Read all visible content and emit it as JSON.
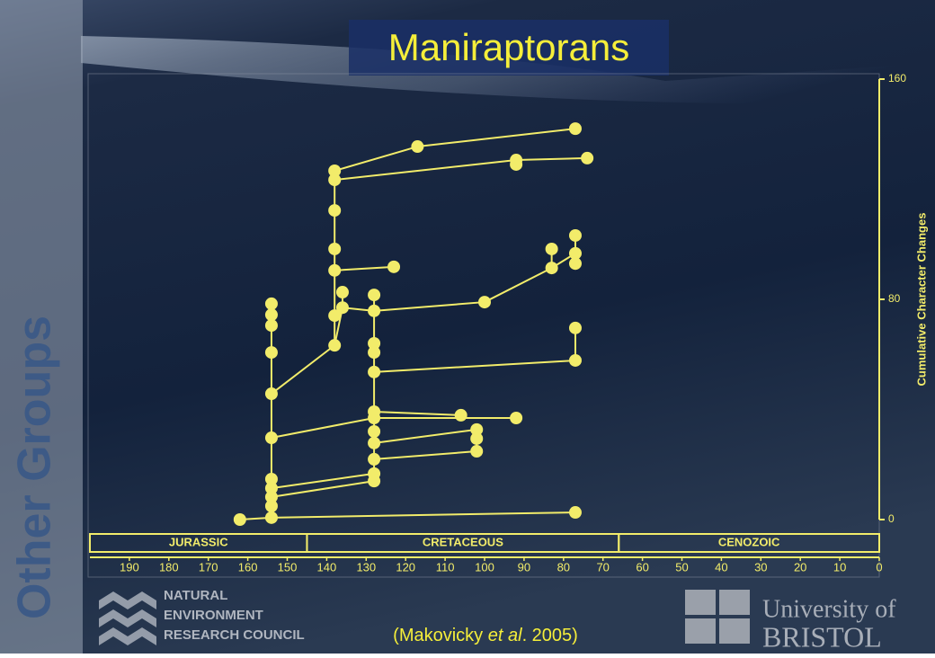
{
  "side_label": "Other Groups",
  "citation": {
    "before": "(Makovicky ",
    "italic": "et al",
    "after": ". 2005)"
  },
  "logos": {
    "nerc": [
      "NATURAL",
      "ENVIRONMENT",
      "RESEARCH COUNCIL"
    ],
    "bristol": [
      "University of",
      "BRISTOL"
    ]
  },
  "chart_data": {
    "type": "tree",
    "title": "Maniraptorans",
    "color": "#f2ec6a",
    "y_label": "Cumulative Character Changes",
    "x": [
      162,
      154,
      154,
      154,
      154,
      154,
      154,
      154,
      154,
      154,
      154,
      154,
      138,
      138,
      138,
      138,
      138,
      138,
      138,
      136,
      136,
      128,
      128,
      128,
      128,
      128,
      128,
      128,
      128,
      128,
      128,
      128,
      128,
      117,
      92,
      92,
      74,
      77,
      123,
      100,
      83,
      83,
      77,
      77,
      77,
      77,
      77,
      106,
      92,
      102,
      102,
      102,
      77
    ],
    "values": [
      0,
      0.7,
      4.9,
      8.2,
      11.4,
      14.7,
      29.7,
      45.7,
      60.7,
      70.5,
      74.4,
      78.4,
      63.3,
      74.1,
      90.5,
      98.3,
      112.3,
      123.4,
      126.7,
      77,
      82.6,
      14,
      16.7,
      21.9,
      27.8,
      32,
      36.9,
      39.2,
      53.6,
      60.7,
      64,
      75.8,
      81.6,
      135.5,
      130.6,
      129,
      131.3,
      142,
      91.8,
      79,
      98.3,
      91.4,
      103.2,
      96.7,
      93,
      69.6,
      57.8,
      37.9,
      36.9,
      32.7,
      29.4,
      24.8,
      2.6
    ],
    "edges": [
      [
        0,
        1
      ],
      [
        1,
        2
      ],
      [
        2,
        3
      ],
      [
        3,
        4
      ],
      [
        4,
        5
      ],
      [
        5,
        6
      ],
      [
        6,
        7
      ],
      [
        7,
        8
      ],
      [
        8,
        9
      ],
      [
        9,
        10
      ],
      [
        10,
        11
      ],
      [
        1,
        52
      ],
      [
        7,
        12
      ],
      [
        6,
        26
      ],
      [
        4,
        22
      ],
      [
        3,
        21
      ],
      [
        12,
        13
      ],
      [
        13,
        14
      ],
      [
        14,
        15
      ],
      [
        15,
        16
      ],
      [
        16,
        17
      ],
      [
        17,
        18
      ],
      [
        18,
        33
      ],
      [
        33,
        37
      ],
      [
        17,
        34
      ],
      [
        34,
        36
      ],
      [
        34,
        35
      ],
      [
        14,
        38
      ],
      [
        12,
        19
      ],
      [
        19,
        20
      ],
      [
        19,
        31
      ],
      [
        31,
        39
      ],
      [
        39,
        41
      ],
      [
        40,
        41
      ],
      [
        41,
        43
      ],
      [
        42,
        43
      ],
      [
        43,
        44
      ],
      [
        21,
        22
      ],
      [
        22,
        23
      ],
      [
        23,
        24
      ],
      [
        24,
        25
      ],
      [
        25,
        26
      ],
      [
        26,
        27
      ],
      [
        27,
        28
      ],
      [
        28,
        29
      ],
      [
        29,
        30
      ],
      [
        30,
        31
      ],
      [
        31,
        32
      ],
      [
        28,
        46
      ],
      [
        45,
        46
      ],
      [
        27,
        47
      ],
      [
        26,
        48
      ],
      [
        24,
        49
      ],
      [
        23,
        51
      ],
      [
        49,
        50
      ],
      [
        50,
        51
      ]
    ],
    "xlim": [
      200,
      0
    ],
    "xticks": [
      190,
      180,
      170,
      160,
      150,
      140,
      130,
      120,
      110,
      100,
      90,
      80,
      70,
      60,
      50,
      40,
      30,
      20,
      10,
      0
    ],
    "ylim": [
      0,
      160
    ],
    "yticks": [
      0,
      80,
      160
    ],
    "periods": [
      {
        "name": "JURASSIC",
        "from": 200,
        "to": 145
      },
      {
        "name": "CRETACEOUS",
        "from": 145,
        "to": 66
      },
      {
        "name": "CENOZOIC",
        "from": 66,
        "to": 0
      }
    ]
  }
}
